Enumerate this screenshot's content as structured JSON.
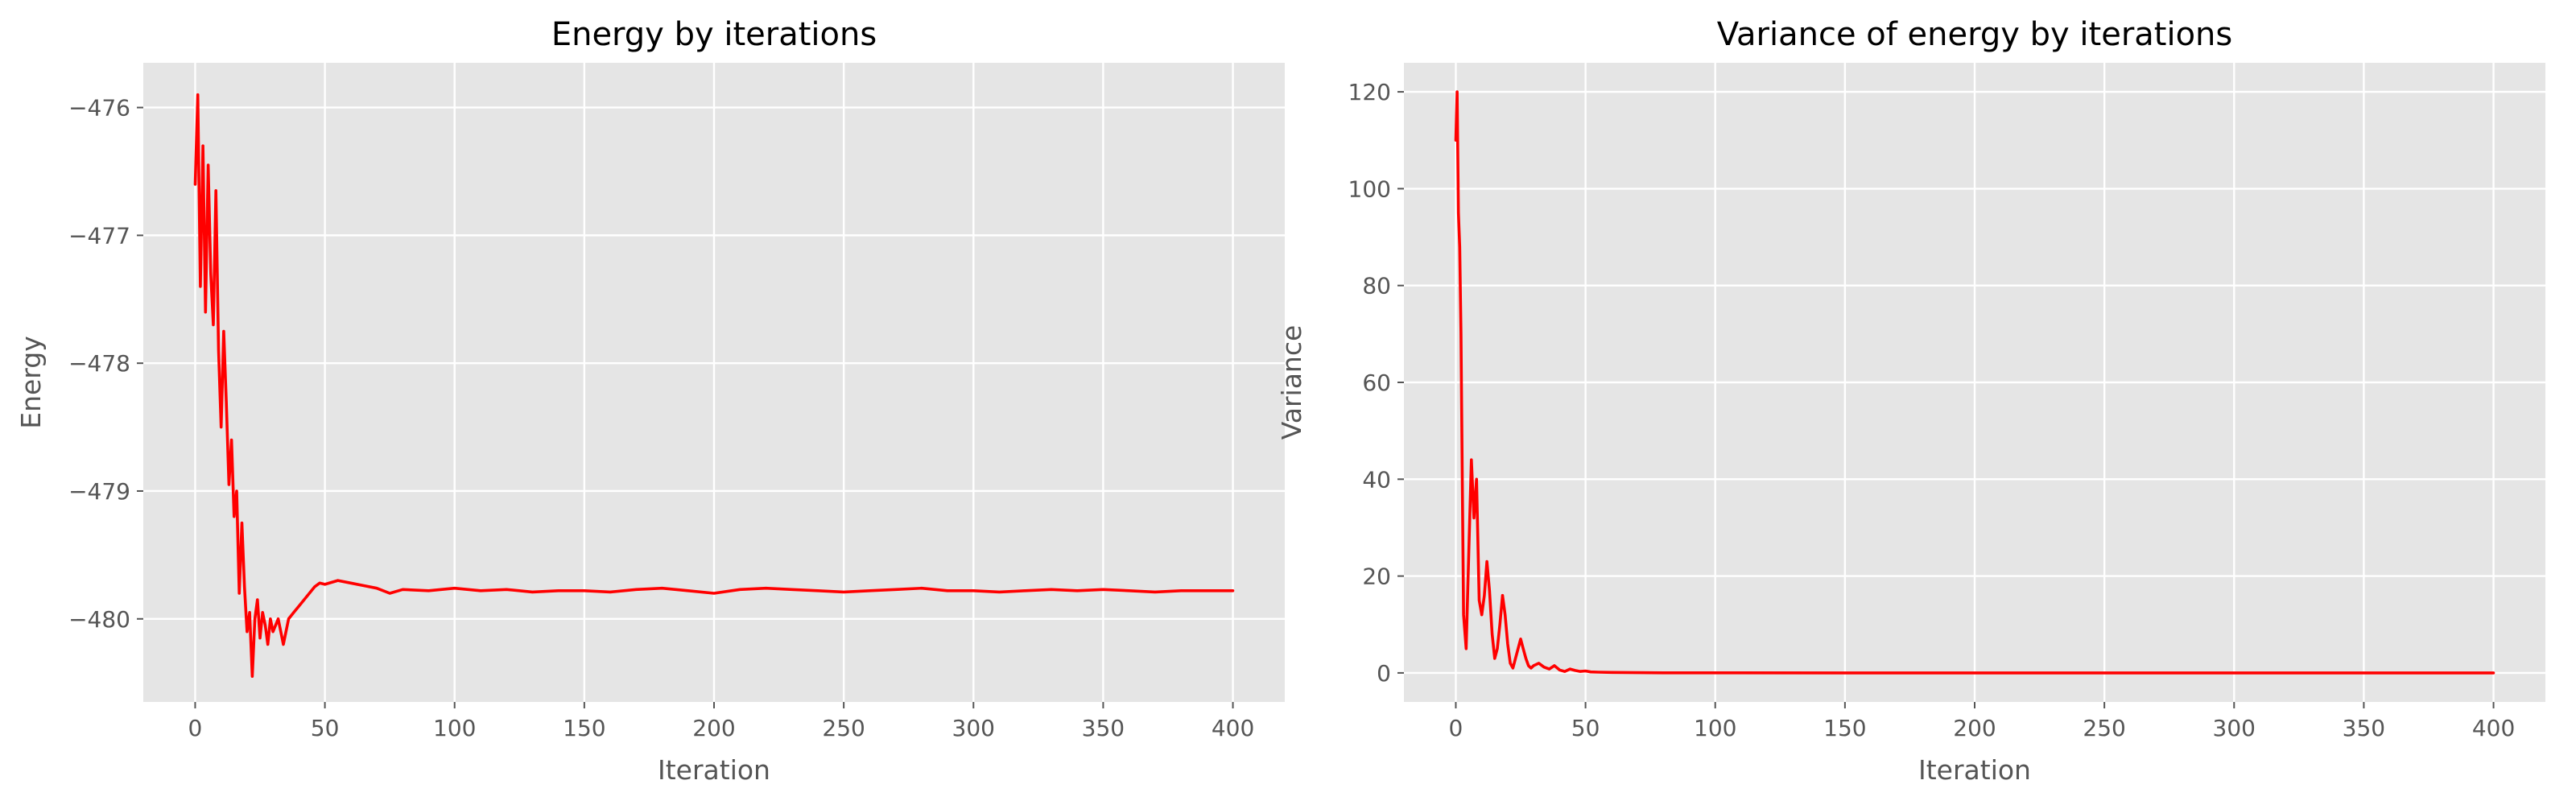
{
  "chart_data": [
    {
      "type": "line",
      "title": "Energy by iterations",
      "xlabel": "Iteration",
      "ylabel": "Energy",
      "xlim": [
        -20,
        420
      ],
      "ylim": [
        -480.65,
        -475.65
      ],
      "xticks": [
        0,
        50,
        100,
        150,
        200,
        250,
        300,
        350,
        400
      ],
      "yticks": [
        -476,
        -477,
        -478,
        -479,
        -480
      ],
      "ytick_labels": [
        "−476",
        "−477",
        "−478",
        "−479",
        "−480"
      ],
      "grid": true,
      "series": [
        {
          "color": "#ff0000",
          "x": [
            0,
            1,
            2,
            3,
            4,
            5,
            6,
            7,
            8,
            9,
            10,
            11,
            12,
            13,
            14,
            15,
            16,
            17,
            18,
            19,
            20,
            21,
            22,
            23,
            24,
            25,
            26,
            27,
            28,
            29,
            30,
            32,
            34,
            36,
            38,
            40,
            42,
            44,
            46,
            48,
            50,
            55,
            60,
            65,
            70,
            75,
            80,
            90,
            100,
            110,
            120,
            130,
            140,
            150,
            160,
            170,
            180,
            190,
            200,
            210,
            220,
            230,
            240,
            250,
            260,
            270,
            280,
            290,
            300,
            310,
            320,
            330,
            340,
            350,
            360,
            370,
            380,
            390,
            400
          ],
          "y": [
            -476.6,
            -475.9,
            -477.4,
            -476.3,
            -477.6,
            -476.45,
            -477.3,
            -477.7,
            -476.65,
            -477.9,
            -478.5,
            -477.75,
            -478.3,
            -478.95,
            -478.6,
            -479.2,
            -479.0,
            -479.8,
            -479.25,
            -479.75,
            -480.1,
            -479.95,
            -480.45,
            -480.0,
            -479.85,
            -480.15,
            -479.95,
            -480.05,
            -480.2,
            -480.0,
            -480.1,
            -480.0,
            -480.2,
            -480.0,
            -479.95,
            -479.9,
            -479.85,
            -479.8,
            -479.75,
            -479.72,
            -479.73,
            -479.7,
            -479.72,
            -479.74,
            -479.76,
            -479.8,
            -479.77,
            -479.78,
            -479.76,
            -479.78,
            -479.77,
            -479.79,
            -479.78,
            -479.78,
            -479.79,
            -479.77,
            -479.76,
            -479.78,
            -479.8,
            -479.77,
            -479.76,
            -479.77,
            -479.78,
            -479.79,
            -479.78,
            -479.77,
            -479.76,
            -479.78,
            -479.78,
            -479.79,
            -479.78,
            -479.77,
            -479.78,
            -479.77,
            -479.78,
            -479.79,
            -479.78,
            -479.78,
            -479.78
          ]
        }
      ]
    },
    {
      "type": "line",
      "title": "Variance of energy by iterations",
      "xlabel": "Iteration",
      "ylabel": "Variance",
      "xlim": [
        -20,
        420
      ],
      "ylim": [
        -6,
        126
      ],
      "xticks": [
        0,
        50,
        100,
        150,
        200,
        250,
        300,
        350,
        400
      ],
      "yticks": [
        0,
        20,
        40,
        60,
        80,
        100,
        120
      ],
      "ytick_labels": [
        "0",
        "20",
        "40",
        "60",
        "80",
        "100",
        "120"
      ],
      "grid": true,
      "series": [
        {
          "color": "#ff0000",
          "x": [
            0,
            0.5,
            1,
            1.5,
            2,
            2.5,
            3,
            4,
            5,
            6,
            7,
            8,
            9,
            10,
            11,
            12,
            13,
            14,
            15,
            16,
            17,
            18,
            19,
            20,
            21,
            22,
            23,
            24,
            25,
            26,
            27,
            28,
            29,
            30,
            32,
            34,
            36,
            38,
            40,
            42,
            44,
            46,
            48,
            50,
            52,
            55,
            60,
            70,
            80,
            100,
            150,
            200,
            250,
            300,
            350,
            400
          ],
          "y": [
            110,
            120,
            95,
            88,
            70,
            40,
            12,
            5,
            25,
            44,
            32,
            40,
            15,
            12,
            16,
            23,
            17,
            8,
            3,
            5,
            10,
            16,
            12,
            6,
            2,
            1,
            3,
            5,
            7,
            5,
            3,
            1.5,
            1,
            1.5,
            2,
            1.2,
            0.8,
            1.5,
            0.6,
            0.3,
            0.8,
            0.5,
            0.3,
            0.4,
            0.2,
            0.15,
            0.1,
            0.05,
            0.02,
            0.01,
            0,
            0,
            0,
            0,
            0,
            0
          ]
        }
      ]
    }
  ]
}
